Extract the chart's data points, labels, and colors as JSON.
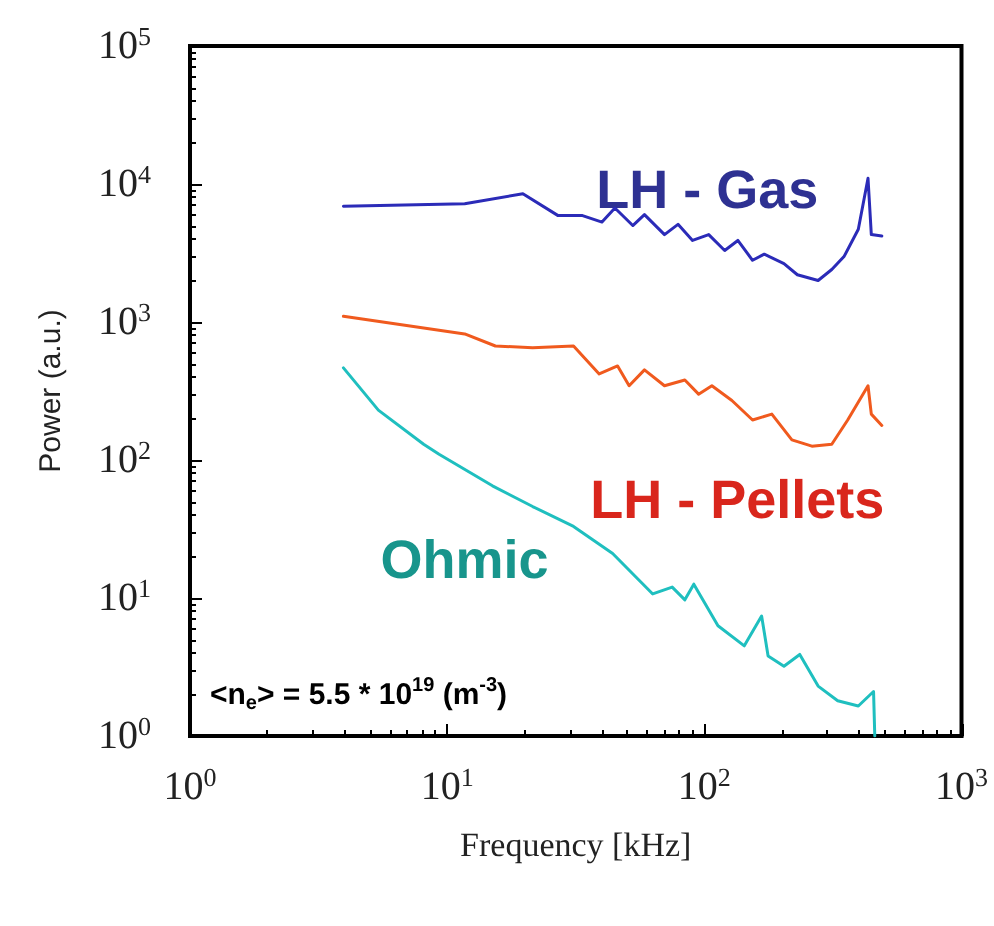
{
  "chart_data": {
    "type": "line",
    "xlabel": "Frequency [kHz]",
    "ylabel": "Power (a.u.)",
    "log": "xy",
    "grid": false,
    "legend": false,
    "marker": "none",
    "line_style": "solid",
    "xlim": [
      1,
      1000
    ],
    "ylim": [
      1,
      100000
    ],
    "xticks": [
      {
        "value": 1,
        "label": "10$^{0}$"
      },
      {
        "value": 10,
        "label": "10$^{1}$"
      },
      {
        "value": 100,
        "label": "10$^{2}$"
      },
      {
        "value": 1000,
        "label": "10$^{3}$"
      }
    ],
    "yticks": [
      {
        "value": 1,
        "label": "10$^{0}$"
      },
      {
        "value": 10,
        "label": "10$^{1}$"
      },
      {
        "value": 100,
        "label": "10$^{2}$"
      },
      {
        "value": 1000,
        "label": "10$^{3}$"
      },
      {
        "value": 10000,
        "label": "10$^{4}$"
      },
      {
        "value": 100000,
        "label": "10$^{5}$"
      }
    ],
    "annotations": [
      "<n$_{e}$> = 5.5 * 10$^{19}$ (m$^{-3}$)"
    ],
    "series": [
      {
        "name": "LH - Gas",
        "color": "#2b2bb8",
        "x": [
          3.95,
          11.7,
          19.7,
          27,
          33.6,
          40,
          44.9,
          52.7,
          58.5,
          70,
          79,
          90,
          104,
          120,
          135,
          154,
          171,
          204,
          230,
          277,
          313,
          350,
          397,
          433,
          446,
          490
        ],
        "values": [
          6900,
          7200,
          8500,
          5900,
          5900,
          5300,
          6700,
          5000,
          6000,
          4300,
          5100,
          3900,
          4300,
          3300,
          3900,
          2800,
          3100,
          2650,
          2200,
          2000,
          2400,
          3000,
          4700,
          11000,
          4300,
          4200
        ]
      },
      {
        "name": "LH - Pellets",
        "color": "#f05a1e",
        "x": [
          3.95,
          11.7,
          15.4,
          21.5,
          31,
          39,
          46,
          51,
          58.5,
          70,
          84,
          95,
          107,
          128,
          154,
          183,
          219,
          262,
          313,
          361,
          433,
          446,
          490
        ],
        "values": [
          1100,
          820,
          670,
          650,
          670,
          420,
          480,
          345,
          450,
          345,
          380,
          300,
          345,
          270,
          195,
          215,
          140,
          126,
          130,
          195,
          345,
          215,
          178
        ]
      },
      {
        "name": "Ohmic",
        "color": "#1fbfbf",
        "x": [
          3.95,
          5.4,
          8.1,
          9.3,
          15,
          21.5,
          31,
          44,
          63,
          75,
          84,
          91,
          113,
          143,
          167,
          177,
          204,
          235,
          277,
          330,
          397,
          455,
          460
        ],
        "values": [
          465,
          230,
          130,
          110,
          65,
          46,
          33,
          21,
          10.7,
          12,
          9.7,
          12.6,
          6.3,
          4.5,
          7.4,
          3.8,
          3.2,
          3.9,
          2.3,
          1.8,
          1.65,
          2.1,
          1.0
        ]
      }
    ]
  }
}
